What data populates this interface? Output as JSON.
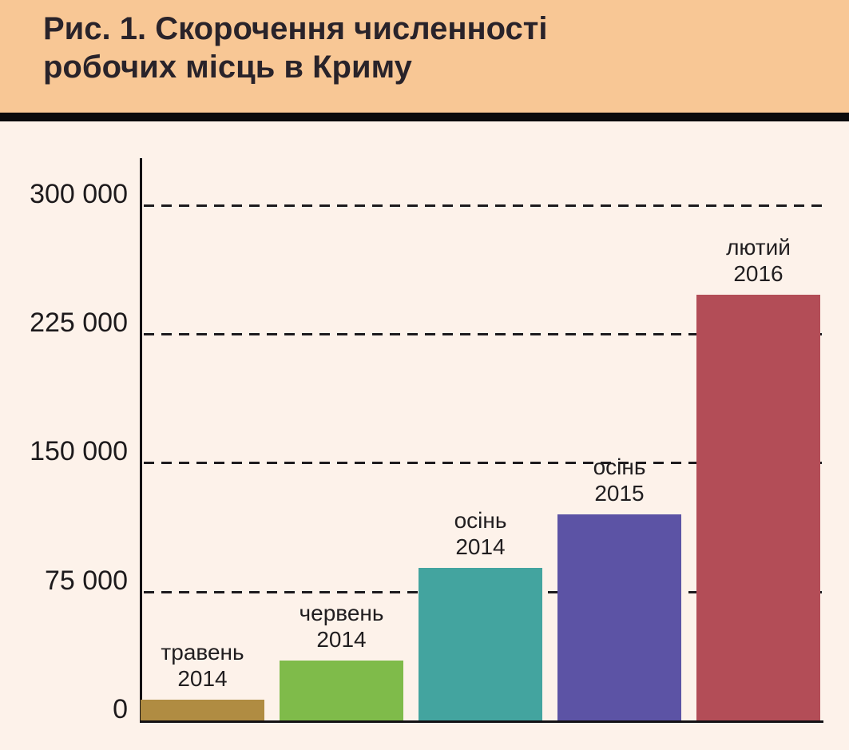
{
  "title_line1": "Рис. 1. Скорочення численності",
  "title_line2": "робочих місць в Криму",
  "colors": {
    "header_background": "#f8c795",
    "divider": "#0a0a0c",
    "chart_background": "#fdf2ea",
    "axis": "#141215",
    "gridline": "#1d1b1e",
    "title_text": "#29232a",
    "label_text": "#211e20"
  },
  "chart_data": {
    "type": "bar",
    "title": "Рис. 1. Скорочення численності робочих місць в Криму",
    "xlabel": "",
    "ylabel": "",
    "ylim": [
      0,
      327000
    ],
    "grid": "horizontal-dashed",
    "legend": "none",
    "categories": [
      "травень 2014",
      "червень 2014",
      "осінь 2014",
      "осінь 2015",
      "лютий 2016"
    ],
    "category_lines": [
      [
        "травень",
        "2014"
      ],
      [
        "червень",
        "2014"
      ],
      [
        "осінь",
        "2014"
      ],
      [
        "осінь",
        "2015"
      ],
      [
        "лютий",
        "2016"
      ]
    ],
    "bar_slugs": [
      "may-2014",
      "june-2014",
      "autumn-2014",
      "autumn-2015",
      "february-2016"
    ],
    "values": [
      12000,
      35000,
      89000,
      120000,
      248000
    ],
    "bar_colors": [
      "#b08c42",
      "#7fbb4a",
      "#43a49f",
      "#5c53a5",
      "#b34d57"
    ],
    "yticks": {
      "labels": [
        "300 000",
        "225 000",
        "150 000",
        "75 000",
        "0"
      ],
      "values": [
        300000,
        225000,
        150000,
        75000,
        0
      ]
    }
  }
}
